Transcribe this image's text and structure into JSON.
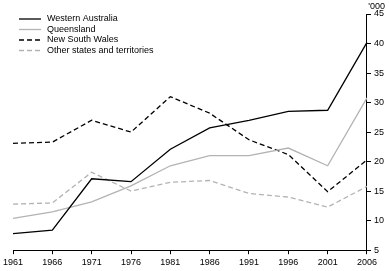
{
  "chart_data": {
    "type": "line",
    "y_label": "'000",
    "categories": [
      "1961",
      "1966",
      "1971",
      "1976",
      "1981",
      "1986",
      "1991",
      "1996",
      "2001",
      "2006"
    ],
    "series": [
      {
        "name": "Western Australia",
        "color": "#000000",
        "line_style": "solid",
        "values": [
          7.8,
          8.4,
          17.1,
          16.6,
          22.1,
          25.7,
          27.0,
          28.5,
          28.7,
          40.2
        ]
      },
      {
        "name": "Queensland",
        "color": "#b3b3b3",
        "line_style": "solid",
        "values": [
          10.4,
          11.5,
          13.2,
          15.9,
          19.3,
          21.0,
          21.0,
          22.3,
          19.3,
          30.8
        ]
      },
      {
        "name": "New South Wales",
        "color": "#000000",
        "line_style": "dashed",
        "values": [
          23.1,
          23.3,
          27.0,
          25.0,
          31.0,
          28.2,
          23.7,
          21.2,
          14.9,
          20.3
        ]
      },
      {
        "name": "Other states and territories",
        "color": "#b3b3b3",
        "line_style": "dashed",
        "values": [
          12.8,
          13.0,
          18.2,
          15.0,
          16.5,
          16.8,
          14.6,
          14.0,
          12.3,
          15.8
        ]
      }
    ],
    "ylim": [
      5,
      45
    ],
    "yticks": [
      5,
      10,
      15,
      20,
      25,
      30,
      35,
      40,
      45
    ],
    "grid": false,
    "legend": "upper left"
  }
}
